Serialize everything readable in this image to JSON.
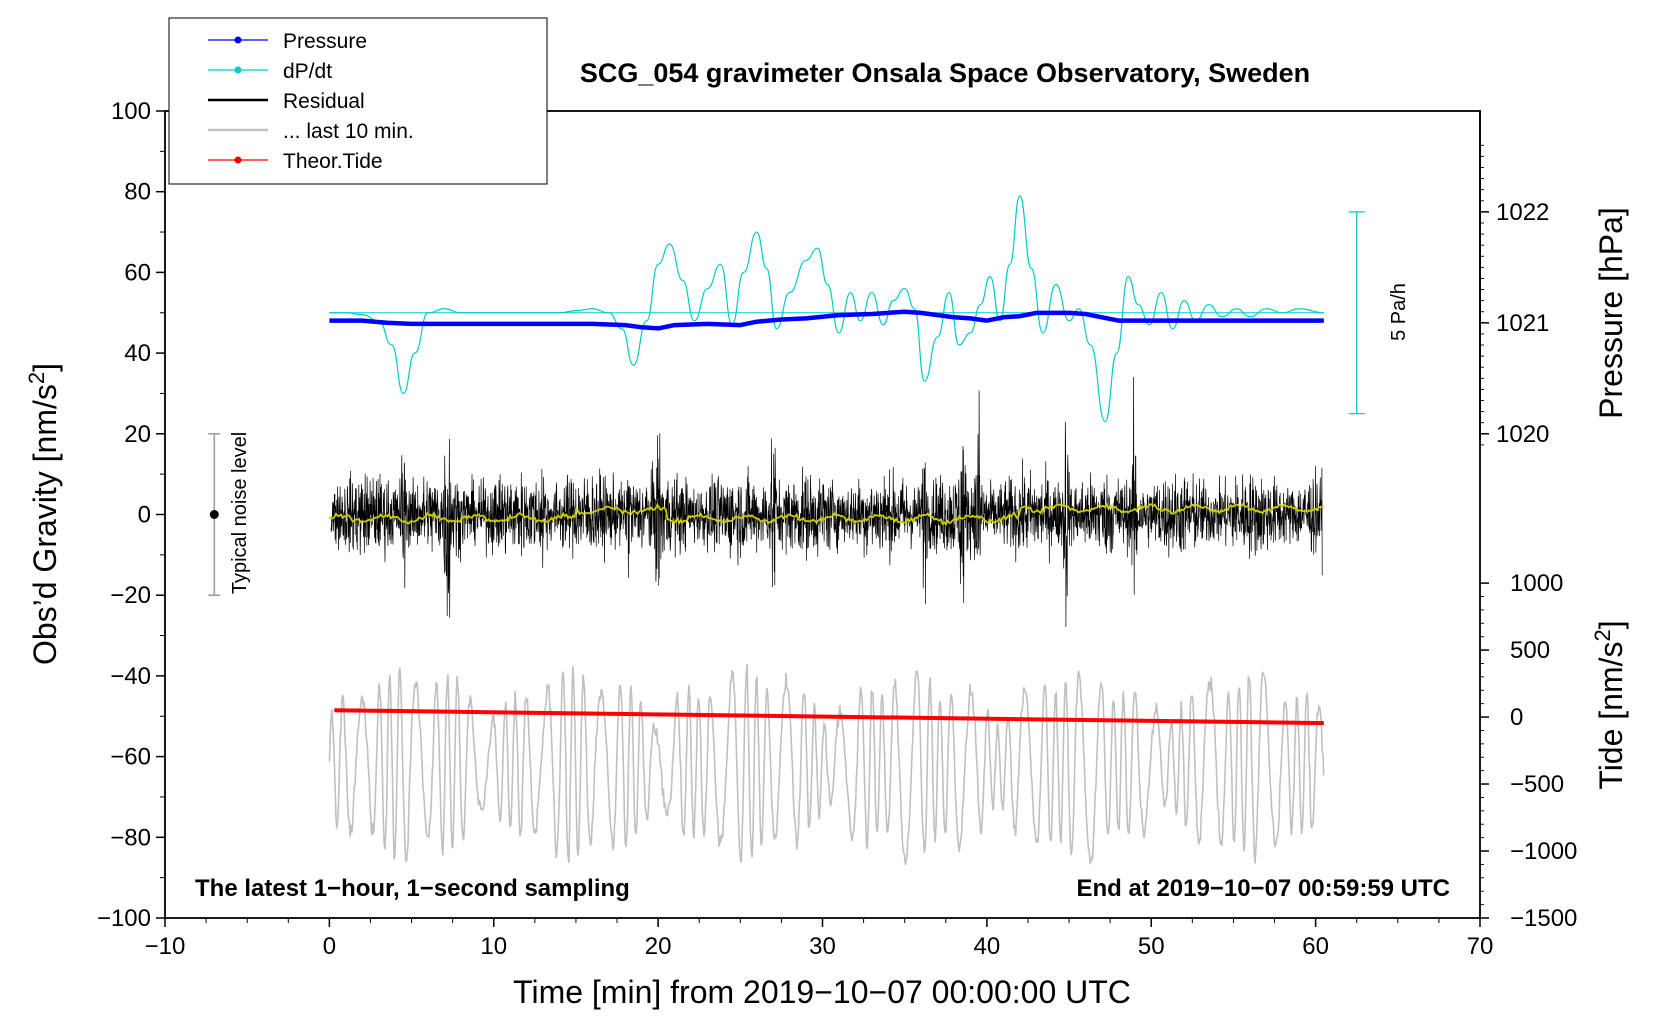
{
  "chart_data": {
    "type": "line",
    "title": "SCG_054 gravimeter Onsala Space Observatory, Sweden",
    "xlabel": "Time [min] from 2019−10−07 00:00:00 UTC",
    "ylabel_left": "Obs’d Gravity [nm/s",
    "ylabel_left_sup": "2",
    "ylabel_left_close": "]",
    "ylabel_right_pressure": "Pressure [hPa]",
    "ylabel_right_tide": "Tide [nm/s",
    "ylabel_right_tide_sup": "2",
    "ylabel_right_tide_close": "]",
    "xlim": [
      -10,
      70
    ],
    "ylim_left": [
      -100,
      100
    ],
    "x_ticks": [
      -10,
      0,
      10,
      20,
      30,
      40,
      50,
      60,
      70
    ],
    "x_tick_labels": [
      "−10",
      "0",
      "10",
      "20",
      "30",
      "40",
      "50",
      "60",
      "70"
    ],
    "y_ticks_left": [
      -100,
      -80,
      -60,
      -40,
      -20,
      0,
      20,
      40,
      60,
      80,
      100
    ],
    "y_tick_labels_left": [
      "−100",
      "−80",
      "−60",
      "−40",
      "−20",
      "0",
      "20",
      "40",
      "60",
      "80",
      "100"
    ],
    "pressure_axis": {
      "ticks": [
        1020,
        1021,
        1022
      ],
      "tick_labels": [
        "1020",
        "1021",
        "1022"
      ],
      "left_value_at_1020": 20,
      "left_value_at_1022": 75
    },
    "tide_axis": {
      "ticks": [
        1000,
        500,
        0,
        -500,
        -1000,
        -1500
      ],
      "tick_labels": [
        "1000",
        "500",
        "0",
        "−500",
        "−1000",
        "−1500"
      ],
      "left_value_at_1000": -17,
      "left_value_at_minus_1500": -100
    },
    "footer_left": "The latest 1−hour, 1−second sampling",
    "footer_right": "End at 2019−10−07 00:59:59 UTC",
    "legend": [
      {
        "label": "Pressure",
        "color": "#0000ff",
        "marker": true
      },
      {
        "label": "dP/dt",
        "color": "#00cccc",
        "marker": true
      },
      {
        "label": "Residual",
        "color": "#000000",
        "marker": false
      },
      {
        "label": "... last 10 min.",
        "color": "#c0c0c0",
        "marker": false
      },
      {
        "label": "Theor.Tide",
        "color": "#ff0000",
        "marker": true
      }
    ],
    "noise_indicator": {
      "label": "Typical noise level",
      "x": -7,
      "center": 0,
      "low": -20,
      "high": 20
    },
    "dpdt_scale": {
      "label": "5 Pa/h",
      "x": 62.5,
      "low": 25,
      "high": 75
    },
    "series": [
      {
        "name": "Pressure",
        "color": "#0000ff",
        "axis": "pressure",
        "x": [
          0,
          2,
          3.5,
          5,
          8,
          12,
          16,
          18,
          19,
          20,
          21,
          23,
          25,
          26,
          27.5,
          29,
          31,
          33,
          35,
          36,
          37,
          38,
          39,
          40,
          41,
          42,
          43,
          45,
          46,
          47,
          48,
          52,
          56,
          60.5
        ],
        "y": [
          1021.02,
          1021.02,
          1021.0,
          1020.99,
          1020.99,
          1020.99,
          1020.99,
          1020.98,
          1020.96,
          1020.95,
          1020.98,
          1020.99,
          1020.98,
          1021.01,
          1021.03,
          1021.04,
          1021.07,
          1021.08,
          1021.1,
          1021.09,
          1021.07,
          1021.05,
          1021.04,
          1021.02,
          1021.05,
          1021.06,
          1021.09,
          1021.09,
          1021.08,
          1021.05,
          1021.02,
          1021.02,
          1021.02,
          1021.02
        ]
      },
      {
        "name": "dP/dt",
        "color": "#00cccc",
        "axis": "left",
        "baseline": 50,
        "x": [
          0,
          1,
          2,
          3,
          3.8,
          4.5,
          5.2,
          6,
          7,
          8,
          10,
          12,
          14,
          15,
          16,
          17,
          17.8,
          18.5,
          19.3,
          20,
          20.7,
          21.5,
          22.2,
          23,
          23.8,
          24.5,
          25.2,
          26,
          26.6,
          27.2,
          28,
          29,
          29.7,
          30.3,
          31,
          31.7,
          32.3,
          33,
          33.7,
          34.3,
          35,
          35.6,
          36.2,
          37,
          37.7,
          38.3,
          39,
          39.6,
          40.2,
          40.8,
          41.4,
          42,
          42.7,
          43.4,
          44.2,
          45,
          45.6,
          46.3,
          47.2,
          47.9,
          48.6,
          49.2,
          49.9,
          50.6,
          51.3,
          52,
          52.7,
          53.5,
          54.3,
          55.2,
          56,
          57,
          58,
          59,
          60.5
        ],
        "y": [
          50,
          50,
          49.5,
          48,
          42,
          30,
          40,
          50,
          51,
          50,
          50,
          50,
          50,
          50.5,
          51,
          50,
          46,
          37,
          48,
          62,
          67,
          58,
          48,
          56,
          62,
          47,
          60,
          70,
          61,
          46,
          55,
          63,
          66,
          57,
          45,
          55,
          48,
          55,
          47,
          53,
          56,
          51,
          33,
          44,
          55,
          42,
          45,
          52,
          59,
          48,
          62,
          79,
          61,
          45,
          57,
          48,
          51,
          42,
          23,
          40,
          59,
          52,
          47,
          55,
          46,
          53,
          48,
          52,
          49,
          51,
          49,
          51,
          50,
          51,
          50
        ]
      },
      {
        "name": "Theor.Tide",
        "color": "#ff0000",
        "axis": "left",
        "x": [
          0.3,
          60.5
        ],
        "y": [
          -48.5,
          -51.7
        ]
      }
    ]
  }
}
